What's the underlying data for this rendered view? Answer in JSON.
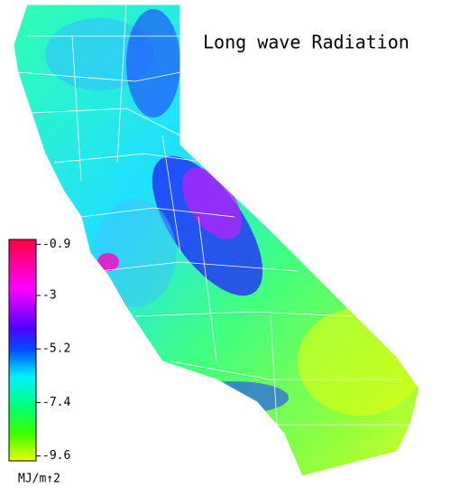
{
  "title": "Long wave Radiation",
  "colorbar": {
    "range": [
      -9.8,
      -0.7
    ],
    "ticks": [
      -0.9,
      -3.0,
      -5.2,
      -7.4,
      -9.6
    ],
    "unit": "MJ/m↑2"
  }
}
